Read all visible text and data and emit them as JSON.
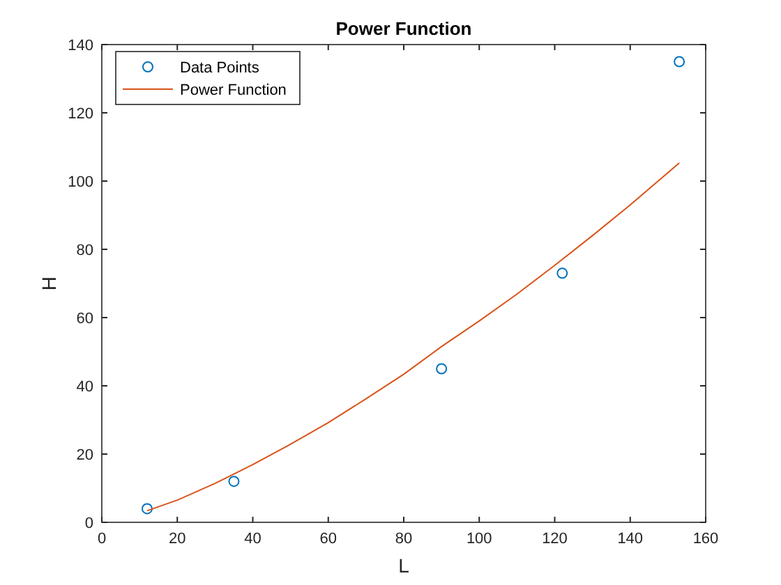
{
  "chart_data": {
    "type": "scatter",
    "title": "Power Function",
    "xlabel": "L",
    "ylabel": "H",
    "xlim": [
      0,
      160
    ],
    "xticks": [
      0,
      20,
      40,
      60,
      80,
      100,
      120,
      140,
      160
    ],
    "ylim": [
      0,
      140
    ],
    "yticks": [
      0,
      20,
      40,
      60,
      80,
      100,
      120,
      140
    ],
    "grid": false,
    "legend": "top left",
    "series": [
      {
        "name": "Data Points",
        "marker": "circle",
        "color": "#0072bd",
        "x": [
          12,
          35,
          90,
          122,
          153
        ],
        "values": [
          4,
          12,
          45,
          73,
          135
        ]
      },
      {
        "name": "Power Function",
        "type": "line",
        "marker": "none",
        "line_style": "solid",
        "color": "#d95319",
        "x": [
          12,
          20,
          30,
          40,
          50,
          60,
          70,
          80,
          90,
          100,
          110,
          120,
          130,
          140,
          153
        ],
        "values": [
          3.4,
          6.5,
          11.4,
          16.9,
          22.9,
          29.2,
          36.2,
          43.4,
          51.5,
          59,
          66.9,
          75.3,
          84,
          93,
          105.3
        ]
      }
    ]
  }
}
